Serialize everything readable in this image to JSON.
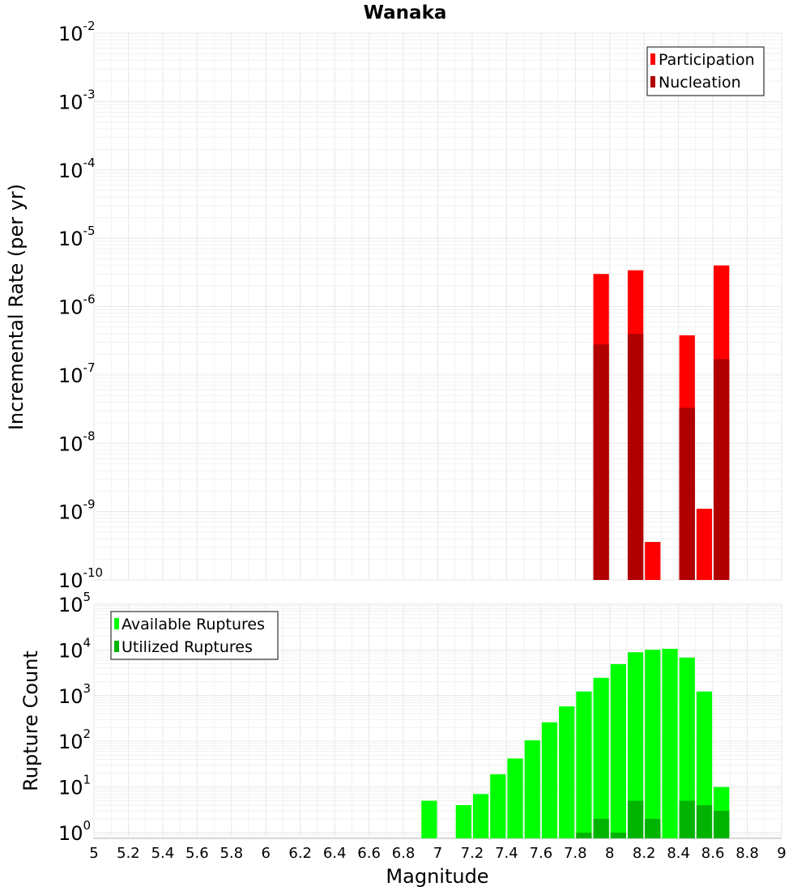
{
  "chart_data": [
    {
      "type": "bar",
      "title": "Wanaka",
      "xlabel": "",
      "ylabel": "Incremental Rate (per yr)",
      "yscale": "log",
      "xlim": [
        5,
        9
      ],
      "ylim": [
        1e-10,
        0.01
      ],
      "y_ticks": [
        {
          "base": "10",
          "exp": "-10"
        },
        {
          "base": "10",
          "exp": "-9"
        },
        {
          "base": "10",
          "exp": "-8"
        },
        {
          "base": "10",
          "exp": "-7"
        },
        {
          "base": "10",
          "exp": "-6"
        },
        {
          "base": "10",
          "exp": "-5"
        },
        {
          "base": "10",
          "exp": "-4"
        },
        {
          "base": "10",
          "exp": "-3"
        },
        {
          "base": "10",
          "exp": "-2"
        }
      ],
      "grid": true,
      "legend_position": "top-right",
      "bar_width": 0.1,
      "series": [
        {
          "name": "Participation",
          "color": "#ff0000",
          "points": [
            [
              7.95,
              3e-06
            ],
            [
              8.15,
              3.4e-06
            ],
            [
              8.25,
              3.6e-10
            ],
            [
              8.45,
              3.8e-07
            ],
            [
              8.55,
              1.1e-09
            ],
            [
              8.65,
              4e-06
            ]
          ]
        },
        {
          "name": "Nucleation",
          "color": "#b00000",
          "points": [
            [
              7.95,
              2.8e-07
            ],
            [
              8.15,
              4e-07
            ],
            [
              8.45,
              3.3e-08
            ],
            [
              8.65,
              1.7e-07
            ]
          ]
        }
      ]
    },
    {
      "type": "bar",
      "title": "",
      "xlabel": "Magnitude",
      "ylabel": "Rupture Count",
      "yscale": "log",
      "xlim": [
        5,
        9
      ],
      "ylim": [
        0.75,
        100000.0
      ],
      "x_ticks": [
        "5",
        "5.2",
        "5.4",
        "5.6",
        "5.8",
        "6",
        "6.2",
        "6.4",
        "6.6",
        "6.8",
        "7",
        "7.2",
        "7.4",
        "7.6",
        "7.8",
        "8",
        "8.2",
        "8.4",
        "8.6",
        "8.8",
        "9"
      ],
      "y_ticks": [
        {
          "base": "10",
          "exp": "0"
        },
        {
          "base": "10",
          "exp": "1"
        },
        {
          "base": "10",
          "exp": "2"
        },
        {
          "base": "10",
          "exp": "3"
        },
        {
          "base": "10",
          "exp": "4"
        },
        {
          "base": "10",
          "exp": "5"
        }
      ],
      "grid": true,
      "legend_position": "top-left",
      "bar_width": 0.1,
      "series": [
        {
          "name": "Available Ruptures",
          "color": "#00ff00",
          "points": [
            [
              6.95,
              5
            ],
            [
              7.15,
              4
            ],
            [
              7.25,
              7
            ],
            [
              7.35,
              19
            ],
            [
              7.45,
              42
            ],
            [
              7.55,
              105
            ],
            [
              7.65,
              260
            ],
            [
              7.75,
              580
            ],
            [
              7.85,
              1230
            ],
            [
              7.95,
              2450
            ],
            [
              8.05,
              4900
            ],
            [
              8.15,
              8900
            ],
            [
              8.25,
              10100
            ],
            [
              8.35,
              10600
            ],
            [
              8.45,
              6800
            ],
            [
              8.55,
              1230
            ],
            [
              8.65,
              10
            ]
          ]
        },
        {
          "name": "Utilized Ruptures",
          "color": "#00b300",
          "points": [
            [
              7.85,
              1
            ],
            [
              7.95,
              2
            ],
            [
              8.05,
              1
            ],
            [
              8.15,
              5
            ],
            [
              8.25,
              2
            ],
            [
              8.45,
              5
            ],
            [
              8.55,
              4
            ],
            [
              8.65,
              3
            ]
          ]
        }
      ]
    }
  ]
}
